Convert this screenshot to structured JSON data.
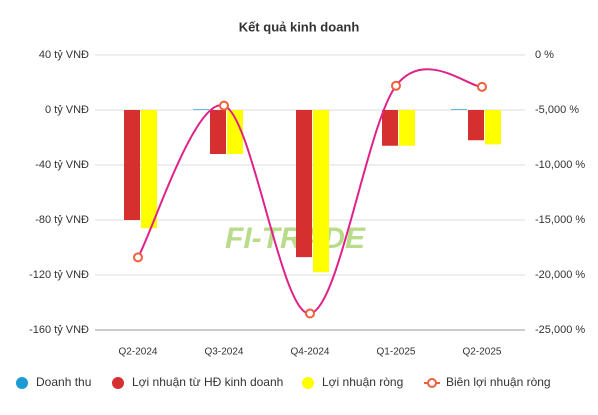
{
  "chart_data": {
    "type": "bar-line",
    "title": "Kết quả kinh doanh",
    "watermark": "FI-TRADE",
    "categories": [
      "Q2-2024",
      "Q3-2024",
      "Q4-2024",
      "Q1-2025",
      "Q2-2025"
    ],
    "series": [
      {
        "name": "Doanh thu",
        "type": "bar",
        "color": "#1e9ad6",
        "values": [
          0,
          0.5,
          0,
          0,
          0.5
        ]
      },
      {
        "name": "Lợi nhuận từ HĐ kinh doanh",
        "type": "bar",
        "color": "#d62f2f",
        "values": [
          -80,
          -32,
          -107,
          -26,
          -22
        ]
      },
      {
        "name": "Lợi nhuận ròng",
        "type": "bar",
        "color": "#ffff00",
        "values": [
          -86,
          -32,
          -118,
          -26,
          -25
        ]
      },
      {
        "name": "Biên lợi nhuận ròng",
        "type": "line",
        "axis": "y2",
        "color": "#e0218a",
        "marker_color": "#f0603c",
        "values": [
          -18400,
          -4600,
          -23500,
          -2800,
          -2900
        ]
      }
    ],
    "ylim": [
      -160,
      40
    ],
    "yticks": [
      {
        "value": 40,
        "label": "40 tỷ VNĐ"
      },
      {
        "value": 0,
        "label": "0 tỷ VNĐ"
      },
      {
        "value": -40,
        "label": "-40 tỷ VNĐ"
      },
      {
        "value": -80,
        "label": "-80 tỷ VNĐ"
      },
      {
        "value": -120,
        "label": "-120 tỷ VNĐ"
      },
      {
        "value": -160,
        "label": "-160 tỷ VNĐ"
      }
    ],
    "y2lim": [
      -25000,
      0
    ],
    "y2ticks": [
      {
        "value": 0,
        "label": "0 %"
      },
      {
        "value": -5000,
        "label": "-5,000 %"
      },
      {
        "value": -10000,
        "label": "-10,000 %"
      },
      {
        "value": -15000,
        "label": "-15,000 %"
      },
      {
        "value": -20000,
        "label": "-20,000 %"
      },
      {
        "value": -25000,
        "label": "-25,000 %"
      }
    ],
    "grid": true
  }
}
